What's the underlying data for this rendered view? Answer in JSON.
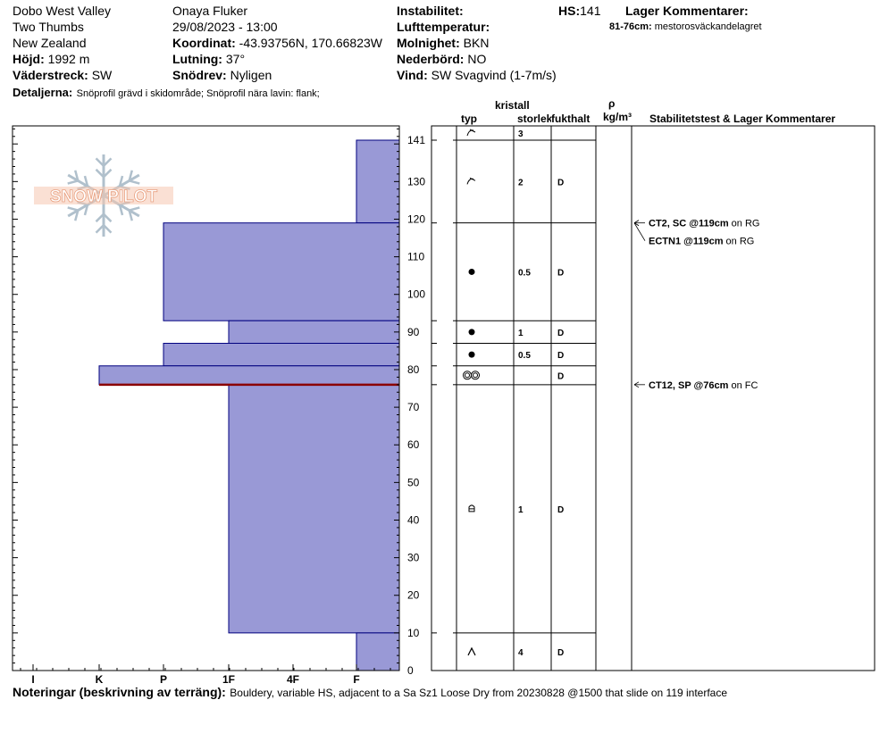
{
  "header": {
    "location": "Dobo West Valley",
    "sub_area": "Two Thumbs",
    "country": "New Zealand",
    "elevation_label": "Höjd:",
    "elevation_value": "1992 m",
    "aspect_label": "Väderstreck:",
    "aspect_value": "SW",
    "observer": "Onaya Fluker",
    "datetime": "29/08/2023 - 13:00",
    "coord_label": "Koordinat:",
    "coord_value": "-43.93756N, 170.66823W",
    "slope_label": "Lutning:",
    "slope_value": "37°",
    "drift_label": "Snödrev:",
    "drift_value": "Nyligen",
    "instability_label": "Instabilitet:",
    "airtemp_label": "Lufttemperatur:",
    "cloud_label": "Molnighet:",
    "cloud_value": "BKN",
    "precip_label": "Nederbörd:",
    "precip_value": "NO",
    "wind_label": "Vind:",
    "wind_value": "SW  Svagvind (1-7m/s)",
    "hs_label": "HS:",
    "hs_value": "141",
    "layer_comments_label": "Lager Kommentarer:",
    "layer_comment_range": "81-76cm:",
    "layer_comment_text": "mestorosväckandelagret",
    "details_label": "Detaljerna:",
    "details_value": "Snöprofil grävd i skidområde;  Snöprofil nära lavin: flank;"
  },
  "logo_text": "SNOW PILOT",
  "table_headers": {
    "kristall": "kristall",
    "typ": "typ",
    "storlek": "storlek",
    "fukthalt": "fukthalt",
    "rho": "ρ",
    "density_unit": "kg/m³",
    "stability": "Stabilitetstest & Lager Kommentarer"
  },
  "notes_label": "Noteringar (beskrivning av terräng):",
  "notes_value": "Bouldery, variable HS, adjacent to a Sa Sz1 Loose Dry from 20230828 @1500 that slide on 119 interface",
  "colors": {
    "hardness_fill": "#9999d6",
    "hardness_stroke": "#00007f",
    "weak_layer": "#8b0000",
    "logo": "#f0a080",
    "flake": "#b0c0cc"
  },
  "chart_data": {
    "type": "bar",
    "title": "",
    "xlabel": "",
    "ylabel": "",
    "ylim": [
      0,
      145
    ],
    "x_ticks": [
      "I",
      "K",
      "P",
      "1F",
      "4F",
      "F"
    ],
    "y_ticks": [
      0,
      10,
      20,
      30,
      40,
      50,
      60,
      70,
      80,
      90,
      100,
      110,
      120,
      130,
      141
    ],
    "hardness_layers": [
      {
        "top": 141,
        "bottom": 119,
        "hardness": "F"
      },
      {
        "top": 119,
        "bottom": 93,
        "hardness": "P"
      },
      {
        "top": 93,
        "bottom": 87,
        "hardness": "1F"
      },
      {
        "top": 87,
        "bottom": 81,
        "hardness": "P"
      },
      {
        "top": 81,
        "bottom": 76,
        "hardness": "K"
      },
      {
        "top": 76,
        "bottom": 10,
        "hardness": "1F"
      },
      {
        "top": 10,
        "bottom": 0,
        "hardness": "F"
      }
    ],
    "weak_layer_height": 76,
    "grain_rows": [
      {
        "top": 145,
        "bottom": 141,
        "type": "precip-particles-icon",
        "size": "3",
        "moisture": ""
      },
      {
        "top": 141,
        "bottom": 119,
        "type": "precip-particles-icon",
        "size": "2",
        "moisture": "D"
      },
      {
        "top": 119,
        "bottom": 93,
        "type": "rounded-grains-icon",
        "size": "0.5",
        "moisture": "D"
      },
      {
        "top": 93,
        "bottom": 87,
        "type": "rounded-grains-icon",
        "size": "1",
        "moisture": "D"
      },
      {
        "top": 87,
        "bottom": 81,
        "type": "rounded-grains-icon",
        "size": "0.5",
        "moisture": "D"
      },
      {
        "top": 81,
        "bottom": 76,
        "type": "melt-forms-icon",
        "size": "",
        "moisture": "D"
      },
      {
        "top": 76,
        "bottom": 10,
        "type": "faceted-rounded-icon",
        "size": "1",
        "moisture": "D"
      },
      {
        "top": 10,
        "bottom": 0,
        "type": "depth-hoar-icon",
        "size": "4",
        "moisture": "D"
      }
    ],
    "tests": [
      {
        "height": 119,
        "label": "CT2, SC @119cm",
        "suffix": "on RG"
      },
      {
        "height": 119,
        "label": "ECTN1 @119cm",
        "suffix": "on RG"
      },
      {
        "height": 76,
        "label": "CT12, SP @76cm",
        "suffix": "on FC"
      }
    ]
  }
}
